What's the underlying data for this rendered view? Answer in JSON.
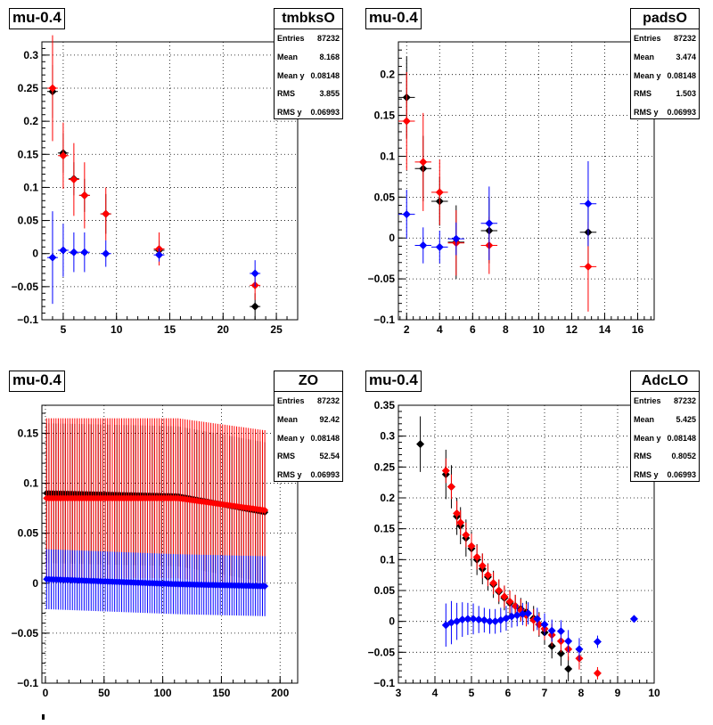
{
  "stats_labels": {
    "entries": "Entries",
    "mean": "Mean",
    "meany": "Mean y",
    "rms": "RMS",
    "rmsy": "RMS y"
  },
  "colors": {
    "black": "#000000",
    "red": "#ff0000",
    "blue": "#0000ff"
  },
  "chart_data": [
    {
      "type": "scatter",
      "tag": "mu-0.4",
      "title": "tmbksO",
      "stats": {
        "entries": "87232",
        "mean": "8.168",
        "meany": "0.08148",
        "rms": "3.855",
        "rmsy": "0.06993"
      },
      "xlim": [
        3,
        27
      ],
      "ylim": [
        -0.1,
        0.32
      ],
      "xticks": [
        5,
        10,
        15,
        20,
        25
      ],
      "xtick_labels": [
        "5",
        "10",
        "15",
        "20",
        "25"
      ],
      "yticks": [
        -0.1,
        -0.05,
        0,
        0.05,
        0.1,
        0.15,
        0.2,
        0.25,
        0.3
      ],
      "ytick_labels": [
        "−0.1",
        "−0.05",
        "0",
        "0.05",
        "0.1",
        "0.15",
        "0.2",
        "0.25",
        "0.3"
      ],
      "series": [
        {
          "color": "black",
          "points": [
            [
              4,
              0.245,
              0.04,
              0.5
            ],
            [
              5,
              0.152,
              0.03,
              0.5
            ],
            [
              6,
              0.113,
              0.025,
              0.5
            ],
            [
              7,
              0.088,
              0.025,
              0.5
            ],
            [
              9,
              0.06,
              0.03,
              0.5
            ],
            [
              14,
              0.005,
              0.015,
              0.5
            ],
            [
              23,
              -0.08,
              0.02,
              0.5
            ]
          ]
        },
        {
          "color": "red",
          "points": [
            [
              4,
              0.25,
              0.08,
              0.5
            ],
            [
              5,
              0.148,
              0.05,
              0.5
            ],
            [
              6,
              0.112,
              0.055,
              0.5
            ],
            [
              7,
              0.088,
              0.05,
              0.5
            ],
            [
              9,
              0.06,
              0.04,
              0.5
            ],
            [
              14,
              0.007,
              0.025,
              0.5
            ],
            [
              23,
              -0.048,
              0.022,
              0.5
            ]
          ]
        },
        {
          "color": "blue",
          "points": [
            [
              4,
              -0.006,
              0.07,
              0.5
            ],
            [
              5,
              0.005,
              0.04,
              0.5
            ],
            [
              6,
              0.002,
              0.03,
              0.5
            ],
            [
              7,
              0.002,
              0.03,
              0.5
            ],
            [
              9,
              0.0,
              0.02,
              0.5
            ],
            [
              14,
              -0.002,
              0.01,
              0.5
            ],
            [
              23,
              -0.03,
              0.02,
              0.5
            ]
          ]
        }
      ]
    },
    {
      "type": "scatter",
      "tag": "mu-0.4",
      "title": "padsO",
      "stats": {
        "entries": "87232",
        "mean": "3.474",
        "meany": "0.08148",
        "rms": "1.503",
        "rmsy": "0.06993"
      },
      "xlim": [
        1.5,
        17
      ],
      "ylim": [
        -0.1,
        0.24
      ],
      "xticks": [
        2,
        4,
        6,
        8,
        10,
        12,
        14,
        16
      ],
      "xtick_labels": [
        "2",
        "4",
        "6",
        "8",
        "10",
        "12",
        "14",
        "16"
      ],
      "yticks": [
        -0.1,
        -0.05,
        0,
        0.05,
        0.1,
        0.15,
        0.2
      ],
      "ytick_labels": [
        "−0.1",
        "−0.05",
        "0",
        "0.05",
        "0.1",
        "0.15",
        "0.2"
      ],
      "series": [
        {
          "color": "black",
          "points": [
            [
              2,
              0.172,
              0.05,
              0.5
            ],
            [
              3,
              0.085,
              0.04,
              0.5
            ],
            [
              4,
              0.045,
              0.03,
              0.5
            ],
            [
              5,
              -0.005,
              0.045,
              0.5
            ],
            [
              7,
              0.009,
              0.04,
              0.5
            ],
            [
              13,
              0.007,
              0.04,
              0.5
            ]
          ]
        },
        {
          "color": "red",
          "points": [
            [
              2,
              0.143,
              0.06,
              0.5
            ],
            [
              3,
              0.093,
              0.06,
              0.5
            ],
            [
              4,
              0.056,
              0.04,
              0.5
            ],
            [
              5,
              -0.006,
              0.04,
              0.5
            ],
            [
              7,
              -0.009,
              0.035,
              0.5
            ],
            [
              13,
              -0.035,
              0.055,
              0.5
            ]
          ]
        },
        {
          "color": "blue",
          "points": [
            [
              2,
              0.029,
              0.03,
              0.5
            ],
            [
              3,
              -0.009,
              0.022,
              0.5
            ],
            [
              4,
              -0.011,
              0.02,
              0.5
            ],
            [
              5,
              -0.001,
              0.02,
              0.5
            ],
            [
              7,
              0.018,
              0.045,
              0.5
            ],
            [
              13,
              0.042,
              0.052,
              0.5
            ]
          ]
        }
      ]
    },
    {
      "type": "scatter",
      "tag": "mu-0.4",
      "title": "ZO",
      "stats": {
        "entries": "87232",
        "mean": "92.42",
        "meany": "0.08148",
        "rms": "52.54",
        "rmsy": "0.06993"
      },
      "xlim": [
        -3,
        215
      ],
      "ylim": [
        -0.1,
        0.178
      ],
      "xticks": [
        0,
        50,
        100,
        150,
        200
      ],
      "xtick_labels": [
        "0",
        "50",
        "100",
        "150",
        "200"
      ],
      "yticks": [
        -0.1,
        -0.05,
        0,
        0.05,
        0.1,
        0.15
      ],
      "ytick_labels": [
        "−0.1",
        "−0.05",
        "0",
        "0.05",
        "0.1",
        "0.15"
      ],
      "dense": [
        {
          "color": "black",
          "x0": 1,
          "x1": 187,
          "y_start": 0.09,
          "y_mid": 0.087,
          "y_end": 0.071,
          "err": 0.07
        },
        {
          "color": "red",
          "x0": 1,
          "x1": 187,
          "y_start": 0.085,
          "y_mid": 0.085,
          "y_end": 0.073,
          "err": 0.08
        },
        {
          "color": "blue",
          "x0": 1,
          "x1": 187,
          "y_start": 0.004,
          "y_mid": -0.001,
          "y_end": -0.003,
          "err": 0.03
        }
      ]
    },
    {
      "type": "scatter",
      "tag": "mu-0.4",
      "title": "AdcLO",
      "stats": {
        "entries": "87232",
        "mean": "5.425",
        "meany": "0.08148",
        "rms": "0.8052",
        "rmsy": "0.06993"
      },
      "xlim": [
        3,
        10
      ],
      "ylim": [
        -0.1,
        0.35
      ],
      "xticks": [
        3,
        4,
        5,
        6,
        7,
        8,
        9,
        10
      ],
      "xtick_labels": [
        "3",
        "4",
        "5",
        "6",
        "7",
        "8",
        "9",
        "10"
      ],
      "yticks": [
        -0.1,
        -0.05,
        0,
        0.05,
        0.1,
        0.15,
        0.2,
        0.25,
        0.3,
        0.35
      ],
      "ytick_labels": [
        "−0.1",
        "−0.05",
        "0",
        "0.05",
        "0.1",
        "0.15",
        "0.2",
        "0.25",
        "0.3",
        "0.35"
      ],
      "series": [
        {
          "color": "black",
          "points": [
            [
              3.6,
              0.287,
              0.045,
              0.05
            ],
            [
              4.3,
              0.238,
              0.04,
              0.05
            ],
            [
              4.45,
              0.218,
              0.035,
              0.05
            ],
            [
              4.6,
              0.17,
              0.03,
              0.05
            ],
            [
              4.7,
              0.155,
              0.03,
              0.05
            ],
            [
              4.85,
              0.135,
              0.03,
              0.05
            ],
            [
              5.0,
              0.118,
              0.028,
              0.05
            ],
            [
              5.15,
              0.1,
              0.025,
              0.05
            ],
            [
              5.3,
              0.085,
              0.025,
              0.05
            ],
            [
              5.45,
              0.072,
              0.022,
              0.05
            ],
            [
              5.6,
              0.06,
              0.022,
              0.05
            ],
            [
              5.75,
              0.048,
              0.02,
              0.05
            ],
            [
              5.9,
              0.038,
              0.02,
              0.05
            ],
            [
              6.05,
              0.03,
              0.02,
              0.05
            ],
            [
              6.2,
              0.025,
              0.018,
              0.05
            ],
            [
              6.35,
              0.02,
              0.018,
              0.05
            ],
            [
              6.5,
              0.015,
              0.018,
              0.05
            ],
            [
              6.7,
              0.005,
              0.02,
              0.05
            ],
            [
              6.85,
              -0.005,
              0.02,
              0.05
            ],
            [
              7.0,
              -0.018,
              0.02,
              0.05
            ],
            [
              7.2,
              -0.04,
              0.02,
              0.05
            ],
            [
              7.45,
              -0.052,
              0.02,
              0.05
            ],
            [
              7.65,
              -0.077,
              0.02,
              0.05
            ]
          ]
        },
        {
          "color": "red",
          "points": [
            [
              4.3,
              0.244,
              0.02,
              0.05
            ],
            [
              4.45,
              0.218,
              0.02,
              0.05
            ],
            [
              4.6,
              0.175,
              0.02,
              0.05
            ],
            [
              4.7,
              0.16,
              0.02,
              0.05
            ],
            [
              4.85,
              0.14,
              0.02,
              0.05
            ],
            [
              5.0,
              0.122,
              0.02,
              0.05
            ],
            [
              5.15,
              0.104,
              0.02,
              0.05
            ],
            [
              5.3,
              0.09,
              0.02,
              0.05
            ],
            [
              5.45,
              0.075,
              0.018,
              0.05
            ],
            [
              5.6,
              0.062,
              0.018,
              0.05
            ],
            [
              5.75,
              0.05,
              0.018,
              0.05
            ],
            [
              5.9,
              0.04,
              0.018,
              0.05
            ],
            [
              6.05,
              0.032,
              0.018,
              0.05
            ],
            [
              6.2,
              0.025,
              0.018,
              0.05
            ],
            [
              6.35,
              0.018,
              0.018,
              0.05
            ],
            [
              6.5,
              0.01,
              0.018,
              0.05
            ],
            [
              6.7,
              0.002,
              0.018,
              0.05
            ],
            [
              6.85,
              -0.005,
              0.018,
              0.05
            ],
            [
              7.0,
              -0.012,
              0.018,
              0.05
            ],
            [
              7.2,
              -0.022,
              0.018,
              0.05
            ],
            [
              7.45,
              -0.032,
              0.018,
              0.05
            ],
            [
              7.65,
              -0.045,
              0.018,
              0.05
            ],
            [
              7.95,
              -0.06,
              0.018,
              0.05
            ],
            [
              8.45,
              -0.084,
              0.01,
              0.05
            ]
          ]
        },
        {
          "color": "blue",
          "points": [
            [
              4.3,
              -0.006,
              0.035,
              0.05
            ],
            [
              4.45,
              -0.002,
              0.035,
              0.05
            ],
            [
              4.6,
              0.0,
              0.03,
              0.05
            ],
            [
              4.75,
              0.003,
              0.028,
              0.05
            ],
            [
              4.9,
              0.004,
              0.026,
              0.05
            ],
            [
              5.05,
              0.004,
              0.025,
              0.05
            ],
            [
              5.2,
              0.003,
              0.022,
              0.05
            ],
            [
              5.35,
              0.002,
              0.02,
              0.05
            ],
            [
              5.5,
              0.0,
              0.02,
              0.05
            ],
            [
              5.65,
              0.0,
              0.02,
              0.05
            ],
            [
              5.8,
              0.002,
              0.02,
              0.05
            ],
            [
              5.95,
              0.005,
              0.02,
              0.05
            ],
            [
              6.1,
              0.008,
              0.018,
              0.05
            ],
            [
              6.25,
              0.01,
              0.018,
              0.05
            ],
            [
              6.4,
              0.012,
              0.018,
              0.05
            ],
            [
              6.55,
              0.013,
              0.018,
              0.05
            ],
            [
              6.8,
              0.004,
              0.018,
              0.05
            ],
            [
              7.0,
              -0.005,
              0.018,
              0.05
            ],
            [
              7.2,
              -0.015,
              0.018,
              0.05
            ],
            [
              7.45,
              -0.016,
              0.018,
              0.05
            ],
            [
              7.65,
              -0.032,
              0.018,
              0.05
            ],
            [
              7.95,
              -0.045,
              0.018,
              0.05
            ],
            [
              8.45,
              -0.033,
              0.01,
              0.05
            ],
            [
              9.45,
              0.004,
              0.005,
              0.05
            ]
          ]
        }
      ]
    }
  ]
}
